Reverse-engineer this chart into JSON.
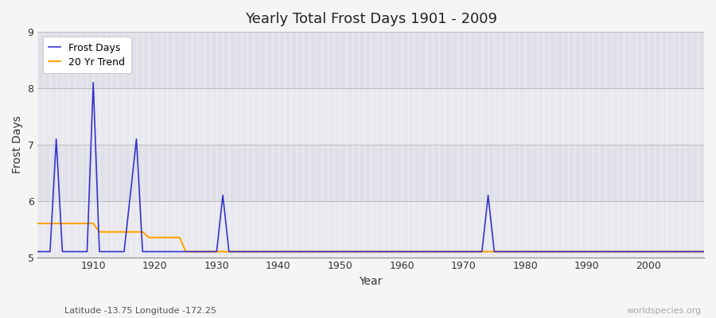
{
  "title": "Yearly Total Frost Days 1901 - 2009",
  "xlabel": "Year",
  "ylabel": "Frost Days",
  "subtitle": "Latitude -13.75 Longitude -172.25",
  "watermark": "worldspecies.org",
  "xlim": [
    1901,
    2009
  ],
  "ylim": [
    5,
    9
  ],
  "yticks": [
    5,
    6,
    7,
    8,
    9
  ],
  "xticks": [
    1910,
    1920,
    1930,
    1940,
    1950,
    1960,
    1970,
    1980,
    1990,
    2000
  ],
  "frost_color": "#3333cc",
  "trend_color": "#FFA500",
  "bg_color": "#f0f0f5",
  "band_color_dark": "#e2e2ea",
  "band_color_light": "#ebebf2",
  "frost_years": [
    1901,
    1902,
    1903,
    1904,
    1905,
    1906,
    1907,
    1908,
    1909,
    1910,
    1911,
    1912,
    1913,
    1914,
    1915,
    1916,
    1917,
    1918,
    1919,
    1920,
    1921,
    1922,
    1923,
    1924,
    1925,
    1926,
    1927,
    1928,
    1929,
    1930,
    1931,
    1932,
    1933,
    1934,
    1935,
    1936,
    1937,
    1938,
    1939,
    1940,
    1941,
    1942,
    1943,
    1944,
    1945,
    1946,
    1947,
    1948,
    1949,
    1950,
    1951,
    1952,
    1953,
    1954,
    1955,
    1956,
    1957,
    1958,
    1959,
    1960,
    1961,
    1962,
    1963,
    1964,
    1965,
    1966,
    1967,
    1968,
    1969,
    1970,
    1971,
    1972,
    1973,
    1974,
    1975,
    1976,
    1977,
    1978,
    1979,
    1980,
    1981,
    1982,
    1983,
    1984,
    1985,
    1986,
    1987,
    1988,
    1989,
    1990,
    1991,
    1992,
    1993,
    1994,
    1995,
    1996,
    1997,
    1998,
    1999,
    2000,
    2001,
    2002,
    2003,
    2004,
    2005,
    2006,
    2007,
    2008,
    2009
  ],
  "frost_values": [
    5.1,
    5.1,
    5.1,
    7.1,
    5.1,
    5.1,
    5.1,
    5.1,
    5.1,
    8.1,
    5.1,
    5.1,
    5.1,
    5.1,
    5.1,
    6.1,
    7.1,
    5.1,
    5.1,
    5.1,
    5.1,
    5.1,
    5.1,
    5.1,
    5.1,
    5.1,
    5.1,
    5.1,
    5.1,
    5.1,
    6.1,
    5.1,
    5.1,
    5.1,
    5.1,
    5.1,
    5.1,
    5.1,
    5.1,
    5.1,
    5.1,
    5.1,
    5.1,
    5.1,
    5.1,
    5.1,
    5.1,
    5.1,
    5.1,
    5.1,
    5.1,
    5.1,
    5.1,
    5.1,
    5.1,
    5.1,
    5.1,
    5.1,
    5.1,
    5.1,
    5.1,
    5.1,
    5.1,
    5.1,
    5.1,
    5.1,
    5.1,
    5.1,
    5.1,
    5.1,
    5.1,
    5.1,
    5.1,
    6.1,
    5.1,
    5.1,
    5.1,
    5.1,
    5.1,
    5.1,
    5.1,
    5.1,
    5.1,
    5.1,
    5.1,
    5.1,
    5.1,
    5.1,
    5.1,
    5.1,
    5.1,
    5.1,
    5.1,
    5.1,
    5.1,
    5.1,
    5.1,
    5.1,
    5.1,
    5.1,
    5.1,
    5.1,
    5.1,
    5.1,
    5.1,
    5.1,
    5.1,
    5.1,
    5.1
  ],
  "trend_years": [
    1901,
    1910,
    1911,
    1918,
    1919,
    1924,
    1925,
    1934,
    1935,
    2009
  ],
  "trend_values": [
    5.6,
    5.6,
    5.45,
    5.45,
    5.35,
    5.35,
    5.1,
    5.1,
    5.1,
    5.1
  ],
  "legend_frost": "Frost Days",
  "legend_trend": "20 Yr Trend"
}
